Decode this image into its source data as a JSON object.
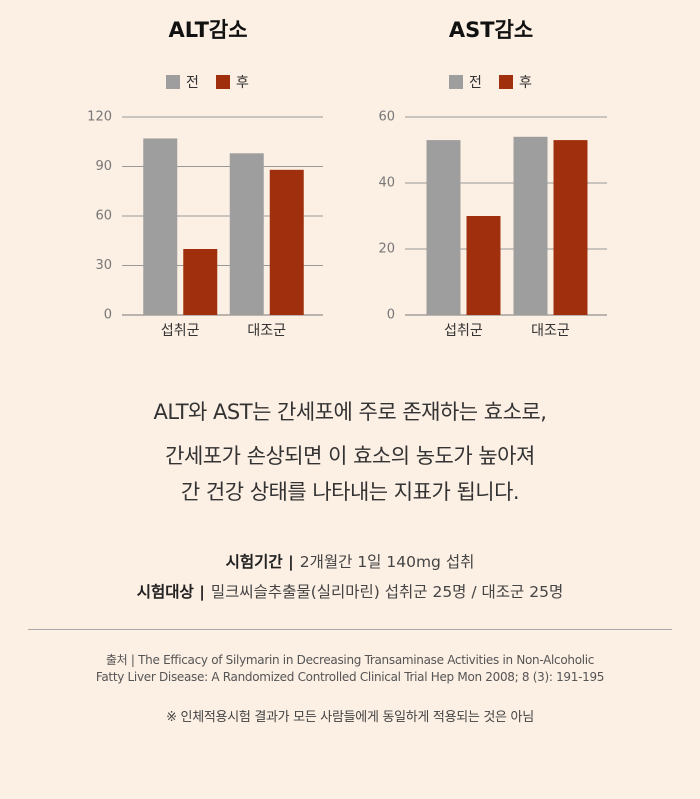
{
  "chart_data": [
    {
      "type": "bar",
      "title": "ALT감소",
      "categories": [
        "섭취군",
        "대조군"
      ],
      "series": [
        {
          "name": "전",
          "color": "#9e9e9e",
          "values": [
            107,
            98
          ]
        },
        {
          "name": "후",
          "color": "#a0300d",
          "values": [
            40,
            88
          ]
        }
      ],
      "ylim": [
        0,
        120
      ],
      "yticks": [
        0,
        30,
        60,
        90,
        120
      ],
      "grid": true,
      "legend": "top"
    },
    {
      "type": "bar",
      "title": "AST감소",
      "categories": [
        "섭취군",
        "대조군"
      ],
      "series": [
        {
          "name": "전",
          "color": "#9e9e9e",
          "values": [
            53,
            54
          ]
        },
        {
          "name": "후",
          "color": "#a0300d",
          "values": [
            30,
            53
          ]
        }
      ],
      "ylim": [
        0,
        60
      ],
      "yticks": [
        0,
        20,
        40,
        60
      ],
      "grid": true,
      "legend": "top"
    }
  ],
  "description": [
    "ALT와 AST는 간세포에 주로 존재하는 효소로,",
    "간세포가 손상되면 이 효소의 농도가 높아져",
    "간 건강 상태를 나타내는 지표가 됩니다."
  ],
  "info": [
    {
      "label": "시험기간 |",
      "text": "2개월간 1일 140mg 섭취"
    },
    {
      "label": "시험대상 |",
      "text": "밀크씨슬추출물(실리마린) 섭취군 25명 / 대조군 25명"
    }
  ],
  "source": [
    "출처 |  The Efficacy of Silymarin in Decreasing Transaminase Activities in Non-Alcoholic",
    "Fatty Liver Disease: A Randomized Controlled Clinical Trial Hep Mon 2008; 8 (3): 191-195"
  ],
  "note": "※ 인체적용시험 결과가 모든 사람들에게 동일하게 적용되는 것은 아님"
}
